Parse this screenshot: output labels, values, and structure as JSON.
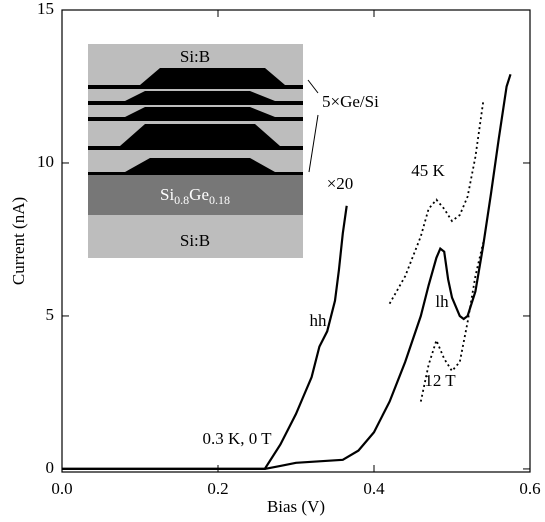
{
  "chart_data": {
    "type": "line",
    "x_label": "Bias (V)",
    "y_label": "Current (nA)",
    "xlim": [
      0,
      0.6
    ],
    "ylim": [
      -0.1,
      15
    ],
    "xticks": [
      {
        "value": 0,
        "label": "0.0"
      },
      0.2,
      0.4,
      0.6
    ],
    "yticks": [
      0,
      5,
      10,
      15
    ],
    "series": [
      {
        "name": "0.3 K, 0 T",
        "color": "#000000",
        "dash": false,
        "x": [
          0,
          0.1,
          0.2,
          0.26,
          0.28,
          0.3,
          0.33,
          0.36,
          0.38,
          0.4,
          0.42,
          0.44,
          0.46,
          0.47,
          0.48,
          0.485,
          0.49,
          0.495,
          0.5,
          0.51,
          0.515,
          0.52,
          0.53,
          0.54,
          0.55,
          0.56,
          0.57,
          0.575
        ],
        "values": [
          0,
          0,
          0,
          0,
          0.1,
          0.2,
          0.25,
          0.3,
          0.6,
          1.2,
          2.2,
          3.5,
          5.0,
          6.0,
          6.9,
          7.2,
          7.1,
          6.2,
          5.6,
          5.0,
          4.9,
          5.0,
          5.8,
          7.3,
          9.0,
          10.8,
          12.5,
          12.9
        ]
      },
      {
        "name": "×20",
        "color": "#000000",
        "dash": false,
        "x": [
          0,
          0.1,
          0.2,
          0.26,
          0.28,
          0.3,
          0.31,
          0.32,
          0.33,
          0.34,
          0.35,
          0.355,
          0.36,
          0.365
        ],
        "values": [
          0,
          0,
          0,
          0,
          0.8,
          1.8,
          2.4,
          3.0,
          4.0,
          4.5,
          5.5,
          6.5,
          7.7,
          8.6
        ]
      },
      {
        "name": "45 K",
        "color": "#000000",
        "dash": true,
        "x": [
          0.42,
          0.44,
          0.46,
          0.47,
          0.48,
          0.49,
          0.5,
          0.51,
          0.52,
          0.53,
          0.54
        ],
        "values": [
          5.4,
          6.3,
          7.6,
          8.5,
          8.8,
          8.5,
          8.1,
          8.3,
          8.9,
          10.2,
          12.0
        ]
      },
      {
        "name": "12 T",
        "color": "#000000",
        "dash": true,
        "x": [
          0.46,
          0.47,
          0.48,
          0.49,
          0.5,
          0.51,
          0.52,
          0.53,
          0.54
        ],
        "values": [
          2.2,
          3.4,
          4.2,
          3.6,
          3.2,
          3.5,
          4.8,
          6.3,
          7.4
        ]
      }
    ],
    "annotations": [
      {
        "text": "hh"
      },
      {
        "text": "lh"
      }
    ],
    "inset": {
      "top_layer": "Si:B",
      "stack": "5×Ge/Si",
      "buffer": [
        "Si",
        "0.8",
        "Ge",
        "0.18"
      ],
      "substrate": "Si:B"
    }
  }
}
